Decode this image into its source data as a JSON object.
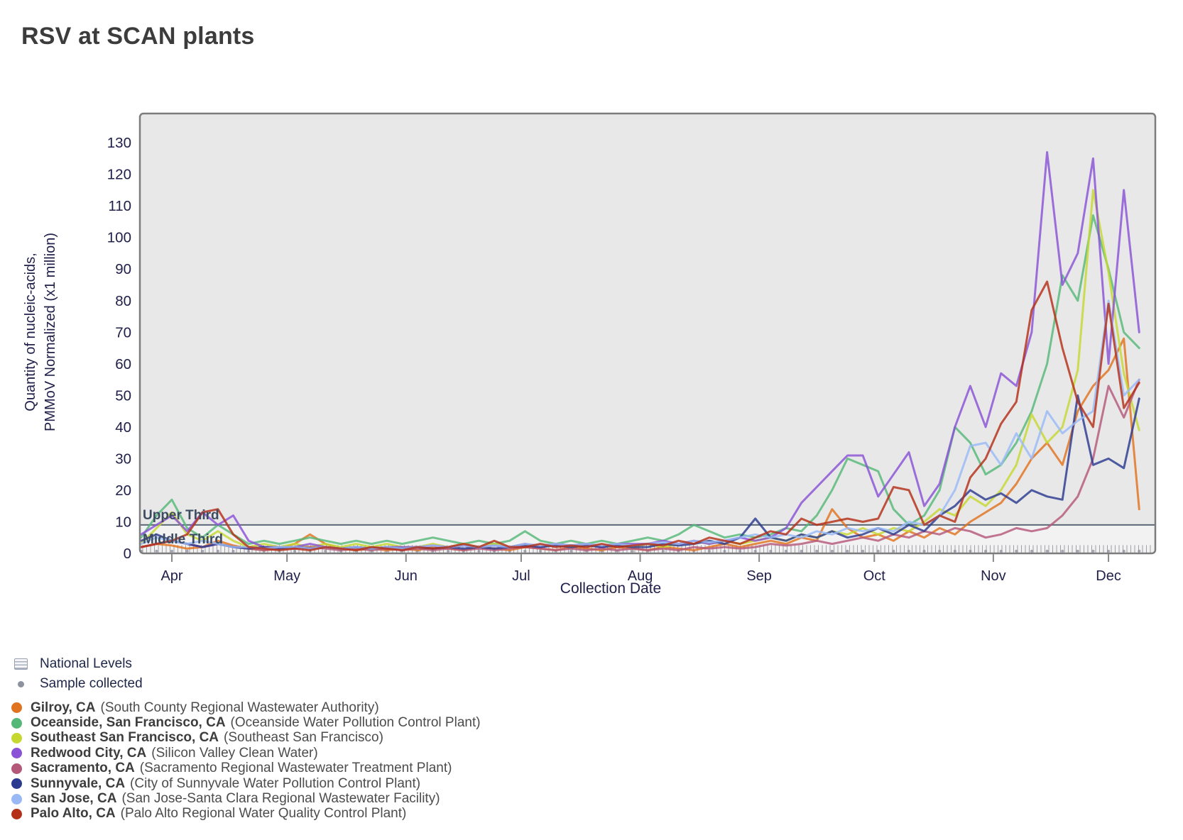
{
  "title": "RSV at SCAN plants",
  "chart_data": {
    "type": "line",
    "title": "RSV at SCAN plants",
    "xlabel": "Collection Date",
    "ylabel": [
      "Quantity of nucleic-acids,",
      "PMMoV Normalized (x1 million)"
    ],
    "x_unit": "days_since_Mar_22",
    "x_domain": [
      2,
      266
    ],
    "ylim": [
      0,
      139
    ],
    "grid": false,
    "y_ticks": [
      0,
      10,
      20,
      30,
      40,
      50,
      60,
      70,
      80,
      90,
      100,
      110,
      120,
      130
    ],
    "x_ticks": [
      {
        "label": "Apr",
        "day": 10
      },
      {
        "label": "May",
        "day": 40
      },
      {
        "label": "Jun",
        "day": 71
      },
      {
        "label": "Jul",
        "day": 101
      },
      {
        "label": "Aug",
        "day": 132
      },
      {
        "label": "Sep",
        "day": 163
      },
      {
        "label": "Oct",
        "day": 193
      },
      {
        "label": "Nov",
        "day": 224
      },
      {
        "label": "Dec",
        "day": 254
      }
    ],
    "threshold": {
      "value": 9,
      "upper_label": "Upper Third",
      "middle_label": "Middle Third"
    },
    "national_band": {
      "from": 0,
      "to": 2.6,
      "label": "National Levels"
    },
    "sample_marker_label": "Sample collected",
    "x": [
      2,
      6,
      10,
      14,
      18,
      22,
      26,
      30,
      34,
      38,
      42,
      46,
      50,
      54,
      58,
      62,
      66,
      70,
      74,
      78,
      82,
      86,
      90,
      94,
      98,
      102,
      106,
      110,
      114,
      118,
      122,
      126,
      130,
      134,
      138,
      142,
      146,
      150,
      154,
      158,
      162,
      166,
      170,
      174,
      178,
      182,
      186,
      190,
      194,
      198,
      202,
      206,
      210,
      214,
      218,
      222,
      226,
      230,
      234,
      238,
      242,
      246,
      250,
      254,
      258,
      262
    ],
    "series": [
      {
        "name": "Gilroy, CA",
        "plant": "(South County Regional Wastewater Authority)",
        "color": "#e0731f",
        "values": [
          2,
          3,
          2.5,
          1.5,
          2,
          4,
          2.5,
          1.5,
          1,
          1.5,
          3,
          6,
          3,
          1.5,
          1,
          1.5,
          1,
          1.5,
          1,
          2,
          1.5,
          1,
          2,
          1.5,
          1,
          2,
          1.5,
          1,
          2,
          1.5,
          1,
          2,
          1.5,
          1,
          2,
          1.5,
          1,
          2,
          3,
          2,
          3,
          4,
          3,
          5,
          4,
          14,
          8,
          5,
          6,
          4,
          7,
          5,
          8,
          6,
          10,
          13,
          16,
          22,
          30,
          35,
          28,
          45,
          53,
          58,
          68,
          14
        ]
      },
      {
        "name": "Oceanside, San Francisco, CA",
        "plant": "(Oceanside Water Pollution Control Plant)",
        "color": "#56b878",
        "values": [
          5,
          12,
          17,
          8,
          5,
          9,
          6,
          3,
          4,
          3,
          4,
          5,
          4,
          3,
          4,
          3,
          4,
          3,
          4,
          5,
          4,
          3,
          4,
          3,
          4,
          7,
          4,
          3,
          4,
          3,
          4,
          3,
          4,
          5,
          4,
          6,
          9,
          7,
          5,
          6,
          5,
          6,
          8,
          7,
          12,
          20,
          30,
          28,
          26,
          14,
          9,
          12,
          20,
          40,
          35,
          25,
          28,
          35,
          45,
          60,
          88,
          80,
          107,
          90,
          70,
          65
        ]
      },
      {
        "name": "Southeast San Francisco, CA",
        "plant": "(Southeast San Francisco)",
        "color": "#c6d830",
        "values": [
          3,
          8,
          13,
          6,
          4,
          7,
          4,
          2,
          3,
          2,
          3,
          2,
          3,
          2,
          3,
          2,
          3,
          2,
          2,
          3,
          2,
          3,
          2,
          3,
          2,
          3,
          2,
          3,
          2,
          3,
          2,
          3,
          2,
          3,
          2,
          3,
          4,
          3,
          4,
          3,
          4,
          5,
          4,
          6,
          5,
          7,
          6,
          8,
          6,
          8,
          7,
          10,
          14,
          12,
          18,
          15,
          20,
          28,
          44,
          35,
          40,
          58,
          115,
          89,
          57,
          39
        ]
      },
      {
        "name": "Redwood City, CA",
        "plant": "(Silicon Valley Clean Water)",
        "color": "#8a52d5",
        "values": [
          6,
          9,
          12,
          7,
          13,
          9,
          12,
          4,
          2,
          2,
          2,
          3,
          2,
          1.5,
          2,
          1.5,
          2,
          2,
          2,
          2.5,
          2,
          2.5,
          2,
          2.5,
          2,
          3,
          2,
          3,
          2.5,
          3,
          2,
          3,
          3,
          3,
          4,
          3,
          4,
          3,
          4,
          5,
          4,
          5,
          8,
          16,
          21,
          26,
          31,
          31,
          18,
          25,
          32,
          15,
          22,
          40,
          53,
          40,
          57,
          53,
          70,
          127,
          85,
          95,
          125,
          60,
          115,
          70
        ]
      },
      {
        "name": "Sacramento, CA",
        "plant": "(Sacramento Regional Wastewater Treatment Plant)",
        "color": "#b4587a",
        "values": [
          2,
          3,
          4,
          3,
          2,
          3,
          2,
          1.5,
          1,
          1.5,
          1.5,
          2,
          1.5,
          1,
          1.5,
          1,
          1.5,
          1,
          1.5,
          1,
          1.5,
          1,
          1.5,
          1,
          1.5,
          2,
          1.5,
          1,
          1.5,
          1,
          1.5,
          1,
          1.5,
          1,
          1.5,
          1,
          2,
          1.5,
          2,
          1.5,
          2,
          3,
          2.5,
          3,
          4,
          3,
          4,
          5,
          4,
          6,
          5,
          7,
          6,
          8,
          7,
          5,
          6,
          8,
          7,
          8,
          12,
          18,
          30,
          53,
          43,
          55
        ]
      },
      {
        "name": "Sunnyvale, CA",
        "plant": "(City of Sunnyvale Water Pollution Control Plant)",
        "color": "#2c3a8f",
        "values": [
          4,
          6,
          4,
          3,
          2,
          3,
          2,
          1.5,
          2,
          1.5,
          2,
          1.5,
          2,
          1.5,
          2,
          1.5,
          2,
          1.5,
          2,
          1.5,
          2,
          1.5,
          2,
          1.5,
          2,
          2.5,
          2,
          2.5,
          2,
          2.5,
          2,
          2.5,
          2,
          2,
          3,
          2.5,
          3,
          4,
          3,
          5,
          11,
          5,
          4,
          6,
          5,
          7,
          5,
          6,
          8,
          6,
          9,
          7,
          12,
          15,
          20,
          17,
          19,
          16,
          20,
          18,
          17,
          50,
          28,
          30,
          27,
          49
        ]
      },
      {
        "name": "San Jose, CA",
        "plant": "(San Jose-Santa Clara Regional Wastewater Facility)",
        "color": "#98b9f6",
        "values": [
          3,
          5,
          4,
          3,
          4,
          3,
          2,
          2,
          1.5,
          2,
          2,
          1.5,
          2,
          1.5,
          2,
          1.5,
          2,
          1.5,
          2,
          2.5,
          2,
          2.5,
          2,
          2.5,
          2,
          3,
          2.5,
          3,
          2.5,
          3,
          2.5,
          3,
          2.5,
          3,
          3.5,
          3,
          4,
          3.5,
          4,
          5,
          6,
          5,
          6,
          5,
          7,
          6,
          8,
          7,
          8,
          7,
          10,
          9,
          12,
          20,
          34,
          35,
          28,
          38,
          30,
          45,
          38,
          42,
          45,
          80,
          50,
          55
        ]
      },
      {
        "name": "Palo Alto, CA",
        "plant": "(Palo Alto Regional Water Quality Control Plant)",
        "color": "#b53019",
        "values": [
          2,
          3,
          4,
          6,
          13,
          14,
          6,
          2,
          1.5,
          1,
          1.5,
          1,
          2,
          1.5,
          1,
          2,
          1.5,
          1,
          2,
          1.5,
          2,
          3,
          2,
          4,
          2,
          2,
          3,
          2,
          2.5,
          2,
          3,
          2,
          2.5,
          3,
          2.5,
          4,
          3,
          5,
          4,
          3,
          5,
          7,
          6,
          11,
          9,
          10,
          11,
          10,
          11,
          21,
          20,
          9,
          12,
          10,
          24,
          30,
          41,
          48,
          77,
          86,
          65,
          48,
          40,
          79,
          46,
          54
        ]
      }
    ]
  }
}
